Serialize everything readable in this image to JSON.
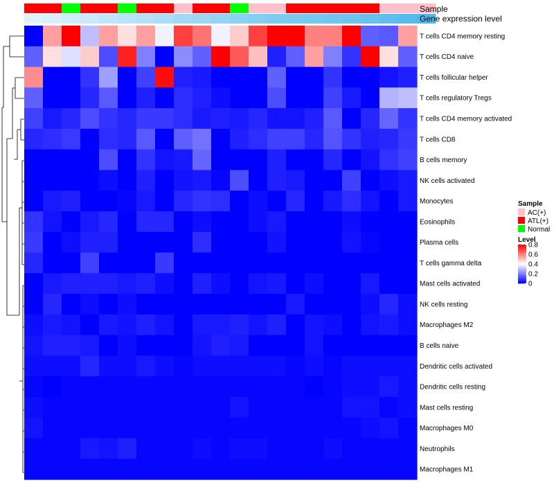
{
  "chart_data": {
    "type": "heatmap",
    "annotation_labels": [
      "Sample",
      "Gene expression level"
    ],
    "rows": [
      "T cells CD4 memory resting",
      "T cells CD4 naive",
      "T cells follicular helper",
      "T cells regulatory  Tregs",
      "T cells CD4 memory activated",
      "T cells CD8",
      "B cells memory",
      "NK cells activated",
      "Monocytes",
      "Eosinophils",
      "Plasma cells",
      "T cells gamma delta",
      "Mast cells activated",
      "NK cells resting",
      "Macrophages M2",
      "B cells naive",
      "Dendritic cells activated",
      "Dendritic cells resting",
      "Mast cells resting",
      "Macrophages M0",
      "Neutrophils",
      "Macrophages M1"
    ],
    "sample_groups": [
      "ATL(+)",
      "ATL(+)",
      "Normal",
      "ATL(+)",
      "ATL(+)",
      "Normal",
      "ATL(+)",
      "ATL(+)",
      "AC(+)",
      "ATL(+)",
      "ATL(+)",
      "Normal",
      "AC(+)",
      "AC(+)",
      "ATL(+)",
      "ATL(+)",
      "ATL(+)",
      "ATL(+)",
      "ATL(+)",
      "AC(+)",
      "AC(+)",
      "AC(+)"
    ],
    "gene_expression_level": [
      0.05,
      0.1,
      0.15,
      0.2,
      0.25,
      0.3,
      0.35,
      0.4,
      0.45,
      0.5,
      0.55,
      0.6,
      0.65,
      0.7,
      0.72,
      0.75,
      0.78,
      0.8,
      0.85,
      0.9,
      0.95,
      1.0
    ],
    "values": [
      [
        0.0,
        0.55,
        0.8,
        0.3,
        0.55,
        0.45,
        0.55,
        0.38,
        0.7,
        0.62,
        0.38,
        0.48,
        0.7,
        0.8,
        0.8,
        0.6,
        0.6,
        0.8,
        0.15,
        0.14,
        0.55
      ],
      [
        0.15,
        0.45,
        0.35,
        0.48,
        0.12,
        0.75,
        0.2,
        0.0,
        0.22,
        0.15,
        0.8,
        0.66,
        0.5,
        0.05,
        0.15,
        0.55,
        0.2,
        0.08,
        0.8,
        0.45,
        0.15
      ],
      [
        0.58,
        0.0,
        0.0,
        0.08,
        0.25,
        0.0,
        0.1,
        0.78,
        0.05,
        0.04,
        0.0,
        0.0,
        0.0,
        0.15,
        0.0,
        0.0,
        0.08,
        0.0,
        0.0,
        0.03,
        0.05
      ],
      [
        0.15,
        0.0,
        0.0,
        0.06,
        0.14,
        0.0,
        0.05,
        0.0,
        0.07,
        0.05,
        0.02,
        0.0,
        0.0,
        0.12,
        0.0,
        0.0,
        0.1,
        0.04,
        0.0,
        0.28,
        0.3
      ],
      [
        0.1,
        0.04,
        0.06,
        0.12,
        0.08,
        0.06,
        0.09,
        0.09,
        0.07,
        0.04,
        0.05,
        0.04,
        0.06,
        0.03,
        0.03,
        0.05,
        0.14,
        0.0,
        0.06,
        0.16,
        0.08
      ],
      [
        0.06,
        0.07,
        0.09,
        0.0,
        0.07,
        0.06,
        0.14,
        0.0,
        0.15,
        0.18,
        0.0,
        0.05,
        0.07,
        0.1,
        0.1,
        0.06,
        0.13,
        0.08,
        0.05,
        0.06,
        0.09
      ],
      [
        0.0,
        0.0,
        0.0,
        0.0,
        0.12,
        0.0,
        0.08,
        0.03,
        0.04,
        0.16,
        0.0,
        0.0,
        0.0,
        0.05,
        0.0,
        0.0,
        0.06,
        0.0,
        0.03,
        0.08,
        0.1
      ],
      [
        0.0,
        0.0,
        0.0,
        0.0,
        0.02,
        0.0,
        0.05,
        0.0,
        0.03,
        0.04,
        0.01,
        0.12,
        0.0,
        0.05,
        0.04,
        0.0,
        0.0,
        0.1,
        0.0,
        0.02,
        0.04
      ],
      [
        0.0,
        0.04,
        0.05,
        0.0,
        0.0,
        0.01,
        0.04,
        0.0,
        0.06,
        0.08,
        0.07,
        0.0,
        0.02,
        0.0,
        0.06,
        0.0,
        0.04,
        0.07,
        0.03,
        0.0,
        0.04
      ],
      [
        0.08,
        0.03,
        0.0,
        0.04,
        0.06,
        0.0,
        0.06,
        0.06,
        0.0,
        0.02,
        0.0,
        0.0,
        0.02,
        0.04,
        0.0,
        0.0,
        0.0,
        0.02,
        0.0,
        0.0,
        0.0
      ],
      [
        0.09,
        0.0,
        0.02,
        0.05,
        0.05,
        0.0,
        0.0,
        0.0,
        0.0,
        0.07,
        0.0,
        0.0,
        0.0,
        0.03,
        0.0,
        0.0,
        0.0,
        0.03,
        0.01,
        0.0,
        0.0
      ],
      [
        0.06,
        0.0,
        0.0,
        0.1,
        0.0,
        0.0,
        0.0,
        0.09,
        0.0,
        0.0,
        0.0,
        0.0,
        0.0,
        0.0,
        0.0,
        0.0,
        0.0,
        0.0,
        0.0,
        0.0,
        0.0
      ],
      [
        0.0,
        0.04,
        0.05,
        0.05,
        0.05,
        0.04,
        0.05,
        0.02,
        0.0,
        0.05,
        0.02,
        0.0,
        0.03,
        0.04,
        0.0,
        0.02,
        0.0,
        0.0,
        0.04,
        0.0,
        0.0
      ],
      [
        0.0,
        0.06,
        0.0,
        0.02,
        0.0,
        0.02,
        0.0,
        0.0,
        0.0,
        0.0,
        0.0,
        0.0,
        0.0,
        0.0,
        0.04,
        0.0,
        0.0,
        0.0,
        0.02,
        0.06,
        0.02
      ],
      [
        0.02,
        0.04,
        0.03,
        0.0,
        0.04,
        0.03,
        0.05,
        0.03,
        0.0,
        0.04,
        0.04,
        0.05,
        0.03,
        0.05,
        0.0,
        0.03,
        0.02,
        0.0,
        0.03,
        0.04,
        0.02
      ],
      [
        0.03,
        0.05,
        0.05,
        0.04,
        0.0,
        0.02,
        0.0,
        0.0,
        0.0,
        0.03,
        0.05,
        0.04,
        0.0,
        0.0,
        0.0,
        0.03,
        0.0,
        0.0,
        0.0,
        0.0,
        0.0
      ],
      [
        0.02,
        0.02,
        0.02,
        0.06,
        0.02,
        0.02,
        0.04,
        0.02,
        0.01,
        0.02,
        0.02,
        0.02,
        0.02,
        0.02,
        0.01,
        0.02,
        0.01,
        0.02,
        0.02,
        0.02,
        0.02
      ],
      [
        0.01,
        0.0,
        0.01,
        0.01,
        0.01,
        0.01,
        0.01,
        0.01,
        0.01,
        0.01,
        0.01,
        0.01,
        0.01,
        0.01,
        0.01,
        0.0,
        0.01,
        0.02,
        0.02,
        0.04,
        0.02
      ],
      [
        0.02,
        0.01,
        0.01,
        0.01,
        0.01,
        0.01,
        0.01,
        0.01,
        0.01,
        0.01,
        0.01,
        0.03,
        0.01,
        0.01,
        0.01,
        0.01,
        0.01,
        0.03,
        0.03,
        0.01,
        0.02
      ],
      [
        0.03,
        0.01,
        0.01,
        0.01,
        0.01,
        0.01,
        0.01,
        0.01,
        0.01,
        0.01,
        0.01,
        0.01,
        0.01,
        0.01,
        0.01,
        0.01,
        0.01,
        0.01,
        0.02,
        0.03,
        0.01
      ],
      [
        0.01,
        0.01,
        0.01,
        0.04,
        0.03,
        0.05,
        0.01,
        0.01,
        0.01,
        0.02,
        0.01,
        0.02,
        0.02,
        0.01,
        0.01,
        0.01,
        0.02,
        0.01,
        0.01,
        0.01,
        0.01
      ],
      [
        0.01,
        0.01,
        0.01,
        0.01,
        0.01,
        0.01,
        0.01,
        0.01,
        0.01,
        0.01,
        0.01,
        0.01,
        0.01,
        0.01,
        0.01,
        0.01,
        0.01,
        0.01,
        0.01,
        0.01,
        0.01
      ]
    ],
    "legend_sample": {
      "title": "Sample",
      "entries": [
        {
          "label": "AC(+)",
          "color": "#ffc0cb"
        },
        {
          "label": "ATL(+)",
          "color": "#ff0000"
        },
        {
          "label": "Normal",
          "color": "#00ff00"
        }
      ]
    },
    "legend_level": {
      "title": "Level",
      "ticks": [
        0.8,
        0.6,
        0.4,
        0.2,
        0
      ]
    },
    "colors": {
      "low": "#0000ff",
      "mid": "#ffffff",
      "high": "#ff0000",
      "annotation_low": "#e6f6fd",
      "annotation_high": "#4fb8ec"
    },
    "scale": {
      "min": 0,
      "mid": 0.4,
      "max": 0.8
    },
    "dendrogram": "row dendrogram on the left"
  }
}
